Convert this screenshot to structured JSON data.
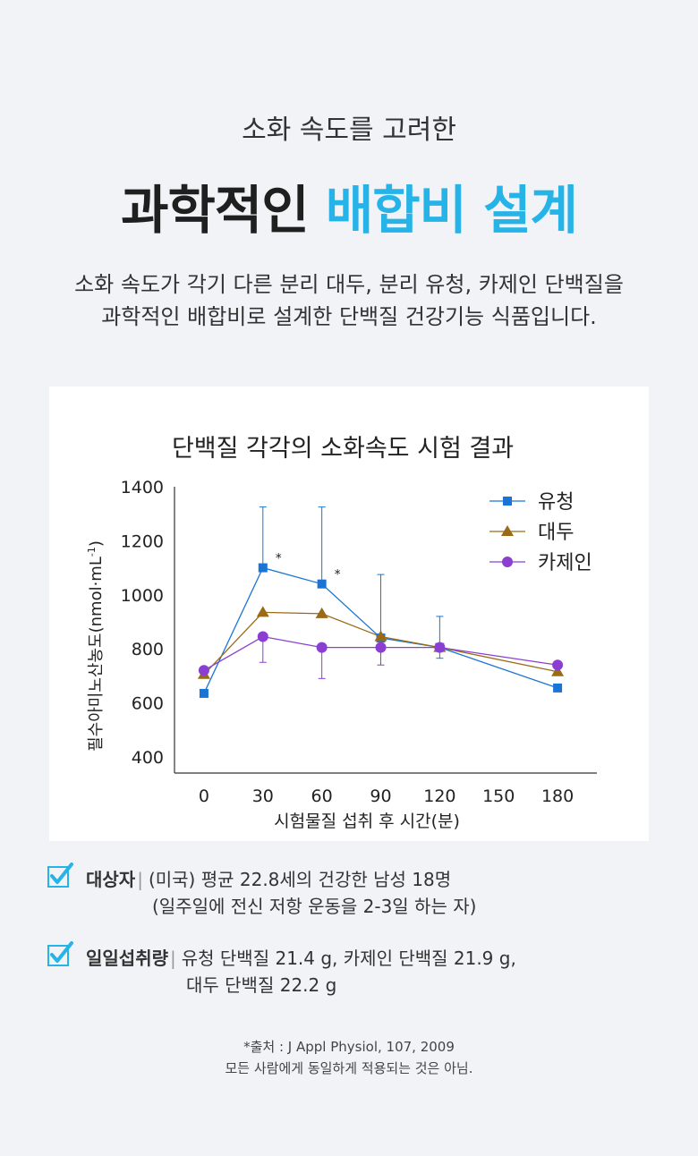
{
  "header": {
    "subtitle": "소화 속도를 고려한",
    "headline_dark": "과학적인",
    "headline_blue": "배합비 설계",
    "desc_line1": "소화 속도가 각기 다른 분리 대두, 분리 유청, 카제인 단백질을",
    "desc_line2": "과학적인 배합비로 설계한 단백질 건강기능 식품입니다."
  },
  "colors": {
    "accent_blue": "#25b3e8",
    "whey": "#1a74d6",
    "soy": "#9a6a17",
    "casein": "#8a3fd1"
  },
  "chart_data": {
    "type": "line",
    "title": "단백질 각각의 소화속도 시험 결과",
    "xlabel": "시험물질 섭취 후 시간(분)",
    "ylabel_main": "필수아미노산농도(nmol·mL",
    "ylabel_sup": "-1",
    "ylabel_end": ")",
    "x": [
      0,
      30,
      60,
      90,
      120,
      150,
      180
    ],
    "x_ticks": [
      "0",
      "30",
      "60",
      "90",
      "120",
      "150",
      "180"
    ],
    "y_ticks": [
      "400",
      "600",
      "800",
      "1000",
      "1200",
      "1400"
    ],
    "xlim": [
      -15,
      200
    ],
    "ylim": [
      340,
      1400
    ],
    "legend_position": "top-right",
    "series": [
      {
        "name": "유청",
        "marker": "square",
        "x": [
          0,
          30,
          60,
          90,
          120,
          180
        ],
        "values": [
          635,
          1100,
          1040,
          840,
          805,
          655
        ],
        "error_upper": [
          null,
          1325,
          1325,
          1075,
          920,
          null
        ],
        "error_lower": [
          null,
          null,
          null,
          null,
          765,
          null
        ]
      },
      {
        "name": "대두",
        "marker": "triangle",
        "x": [
          0,
          30,
          60,
          90,
          120,
          180
        ],
        "values": [
          705,
          935,
          930,
          845,
          805,
          715
        ],
        "error_upper": [
          null,
          null,
          null,
          null,
          null,
          null
        ],
        "error_lower": [
          null,
          null,
          null,
          null,
          null,
          null
        ]
      },
      {
        "name": "카제인",
        "marker": "circle",
        "x": [
          0,
          30,
          60,
          90,
          120,
          180
        ],
        "values": [
          720,
          845,
          805,
          805,
          805,
          740
        ],
        "error_upper": [
          null,
          null,
          null,
          null,
          null,
          null
        ],
        "error_lower": [
          null,
          750,
          690,
          740,
          null,
          null
        ]
      }
    ],
    "annotations": [
      {
        "text": "*",
        "x": 30,
        "y": 1100
      },
      {
        "text": "*",
        "x": 60,
        "y": 1040
      }
    ]
  },
  "info": {
    "subject_label": "대상자",
    "subject_line1": "(미국) 평균 22.8세의 건강한 남성 18명",
    "subject_line2": "(일주일에 전신 저항 운동을 2-3일 하는 자)",
    "intake_label": "일일섭취량",
    "intake_line1": "유청 단백질 21.4 g, 카제인 단백질 21.9 g,",
    "intake_line2": "대두 단백질 22.2 g",
    "separator": "|"
  },
  "footnote": {
    "source": "*출처 : J Appl Physiol, 107, 2009",
    "disclaimer": "모든 사람에게 동일하게 적용되는 것은 아님."
  }
}
